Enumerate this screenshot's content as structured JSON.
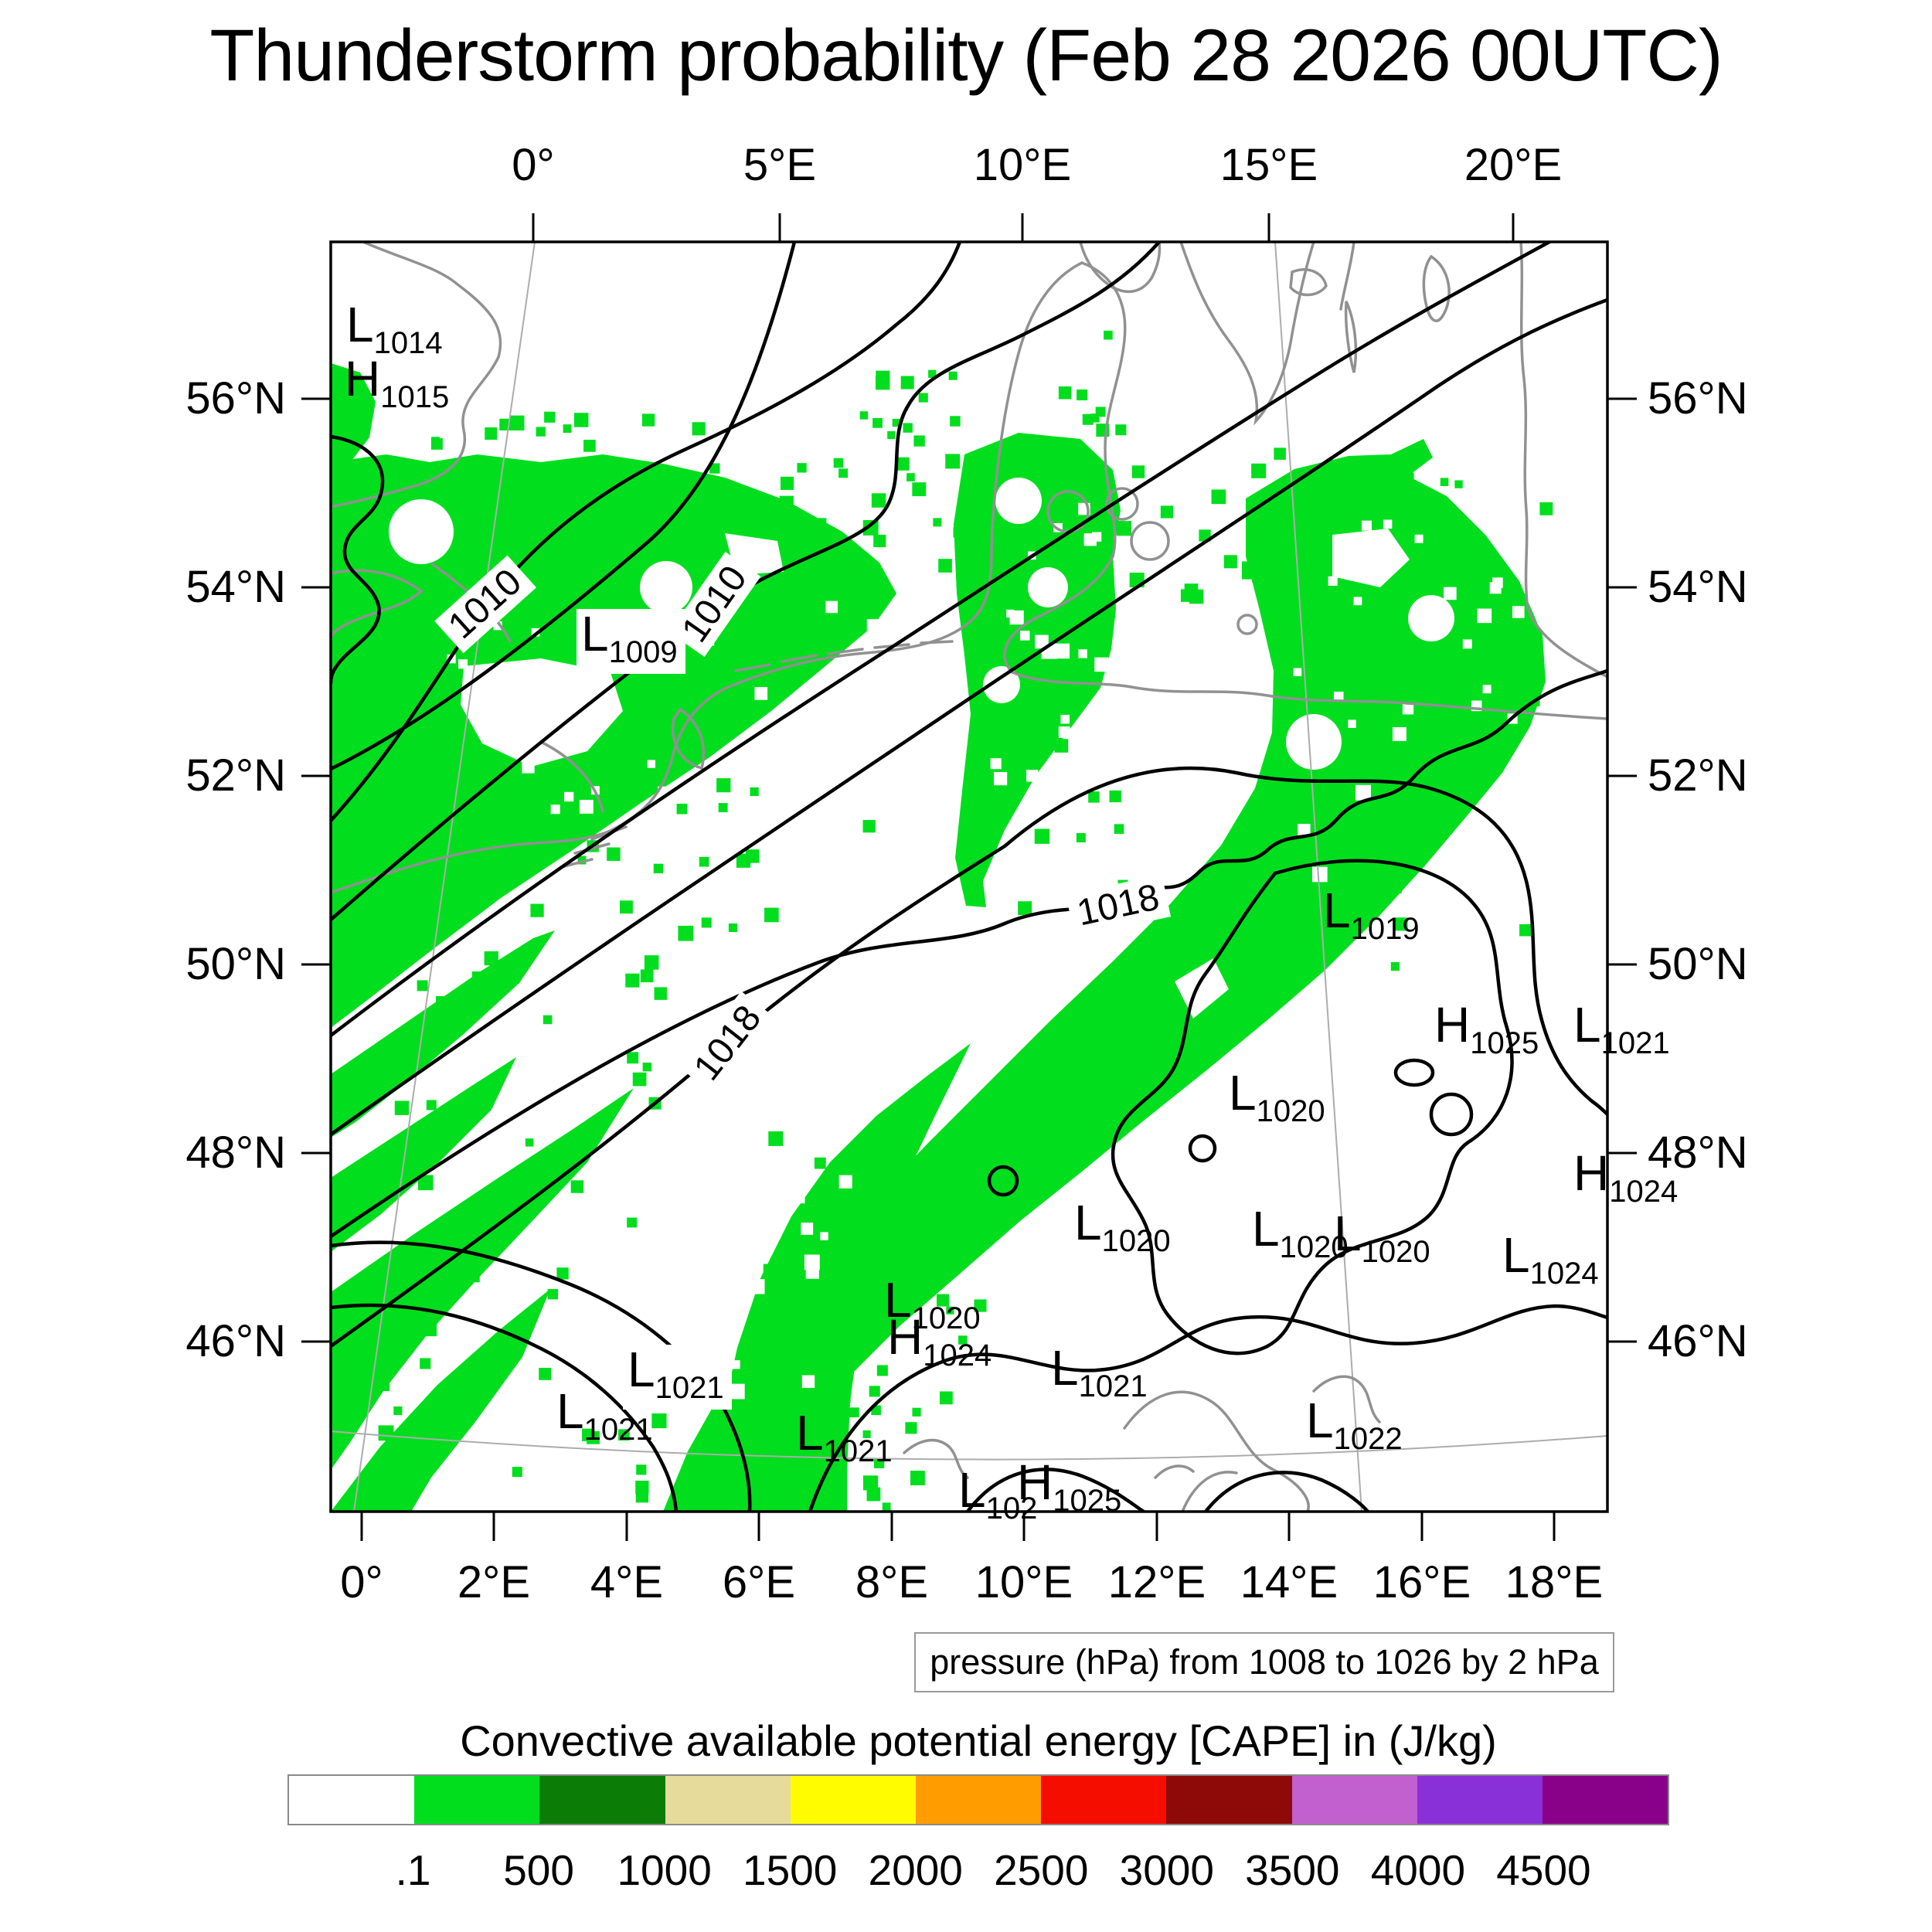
{
  "title": "Thunderstorm probability (Feb 28 2026 00UTC)",
  "pressure_caption": "pressure (hPa) from 1008 to 1026 by 2 hPa",
  "colorbar": {
    "title": "Convective available potential energy [CAPE] in (J/kg)",
    "tick_labels": [
      ".1",
      "500",
      "1000",
      "1500",
      "2000",
      "2500",
      "3000",
      "3500",
      "4000",
      "4500"
    ],
    "colors": [
      "#FFFFFF",
      "#00DE1E",
      "#0B7D06",
      "#E7DB9B",
      "#FFFC00",
      "#FF9C00",
      "#F50D00",
      "#8E0A08",
      "#C260CF",
      "#8A30D8",
      "#8A0189"
    ]
  },
  "map_colors": {
    "contour": "#000000",
    "coastline": "#919191",
    "graticule": "#ACACAC",
    "cape_fill": "#00DE1E",
    "frame": "#000000"
  },
  "chart_data": {
    "type": "heatmap",
    "title": "Thunderstorm probability (Feb 28 2026 00UTC)",
    "fill_variable": "Convective available potential energy [CAPE] in (J/kg)",
    "fill_levels": [
      0.1,
      500,
      1000,
      1500,
      2000,
      2500,
      3000,
      3500,
      4000,
      4500
    ],
    "fill_colors": [
      "#FFFFFF",
      "#00DE1E",
      "#0B7D06",
      "#E7DB9B",
      "#FFFC00",
      "#FF9C00",
      "#F50D00",
      "#8E0A08",
      "#C260CF",
      "#8A30D8",
      "#8A0189"
    ],
    "fill_note": "only the lowest (.1 to 500 J/kg, green) CAPE category appears on the map",
    "contour_variable": "pressure (hPa)",
    "contour_from": 1008,
    "contour_to": 1026,
    "contour_by": 2,
    "contour_labels_visible": [
      "1010",
      "1010",
      "1018",
      "1018"
    ],
    "pressure_centers": [
      {
        "type": "L",
        "value": "1014"
      },
      {
        "type": "H",
        "value": "1015"
      },
      {
        "type": "L",
        "value": "1009"
      },
      {
        "type": "L",
        "value": "1019"
      },
      {
        "type": "H",
        "value": "1025"
      },
      {
        "type": "L",
        "value": "1021"
      },
      {
        "type": "L",
        "value": "1020"
      },
      {
        "type": "H",
        "value": "1024"
      },
      {
        "type": "L",
        "value": "1020"
      },
      {
        "type": "L",
        "value": "1020"
      },
      {
        "type": "L",
        "value": "1020"
      },
      {
        "type": "L",
        "value": "1024"
      },
      {
        "type": "L",
        "value": "1020"
      },
      {
        "type": "H",
        "value": "1024"
      },
      {
        "type": "L",
        "value": "1021"
      },
      {
        "type": "L",
        "value": "1021"
      },
      {
        "type": "L",
        "value": "1021"
      },
      {
        "type": "L",
        "value": "1021"
      },
      {
        "type": "L",
        "value": "1022"
      },
      {
        "type": "H",
        "value": "1025"
      },
      {
        "type": "L",
        "value": "102"
      }
    ],
    "axes": {
      "top_lon": [
        "0°",
        "5°E",
        "10°E",
        "15°E",
        "20°E"
      ],
      "bottom_lon": [
        "0°",
        "2°E",
        "4°E",
        "6°E",
        "8°E",
        "10°E",
        "12°E",
        "14°E",
        "16°E",
        "18°E"
      ],
      "lat_left": [
        "56°N",
        "54°N",
        "52°N",
        "50°N",
        "48°N",
        "46°N"
      ],
      "lat_right": [
        "56°N",
        "54°N",
        "52°N",
        "50°N",
        "48°N",
        "46°N"
      ]
    }
  }
}
